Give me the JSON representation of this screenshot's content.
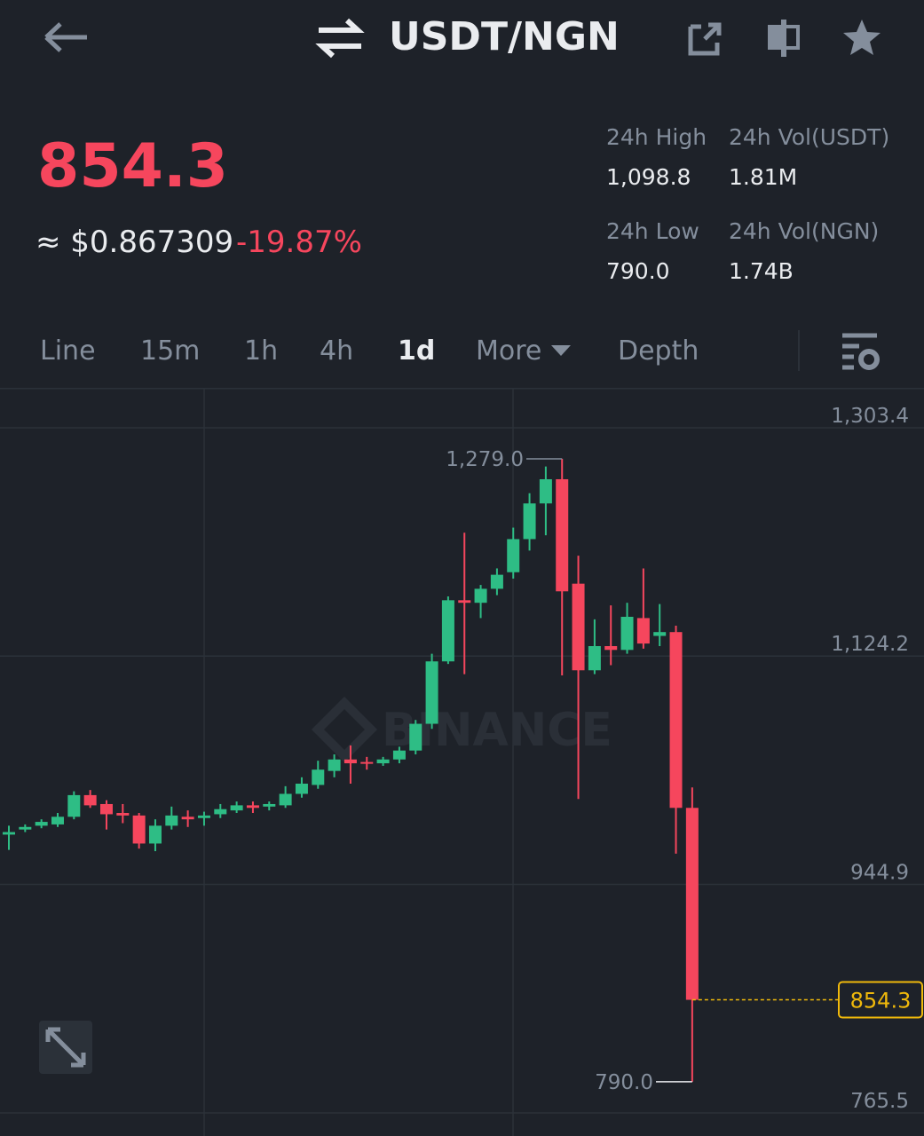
{
  "header": {
    "pair": "USDT/NGN"
  },
  "ticker": {
    "price": "854.3",
    "usd": "≈ $0.867309",
    "change": "-19.87%"
  },
  "stats": [
    {
      "label": "24h High",
      "value": "1,098.8"
    },
    {
      "label": "24h Vol(USDT)",
      "value": "1.81M"
    },
    {
      "label": "24h Low",
      "value": "790.0"
    },
    {
      "label": "24h Vol(NGN)",
      "value": "1.74B"
    }
  ],
  "tabs": [
    "Line",
    "15m",
    "1h",
    "4h",
    "1d",
    "More",
    "Depth"
  ],
  "active_tab": 4,
  "chart_data": {
    "type": "candlestick",
    "watermark": "BINANCE",
    "ylim": [
      765.5,
      1303.4
    ],
    "yticks": [
      {
        "value": 1303.4,
        "label": "1,303.4"
      },
      {
        "value": 1124.2,
        "label": "1,124.2"
      },
      944.9,
      765.5
    ],
    "grid": true,
    "up_color": "#2ebd85",
    "down_color": "#f6465d",
    "open": [
      984,
      988,
      991,
      992,
      998,
      1015,
      1008,
      1001,
      999,
      977,
      991,
      998,
      997,
      1000,
      1003,
      1007,
      1006,
      1007,
      1016,
      1023,
      1034,
      1043,
      1041,
      1040,
      1043,
      1050,
      1071,
      1120,
      1168,
      1166,
      1177,
      1190,
      1216,
      1244,
      1263,
      1181,
      1113,
      1132,
      1129,
      1154,
      1140,
      1143,
      1005
    ],
    "high": [
      991,
      992,
      996,
      1001,
      1018,
      1019,
      1011,
      1008,
      1001,
      996,
      1006,
      1003,
      1002,
      1008,
      1010,
      1010,
      1010,
      1022,
      1029,
      1042,
      1047,
      1054,
      1045,
      1045,
      1053,
      1074,
      1126,
      1171,
      1221,
      1180,
      1193,
      1225,
      1252,
      1273,
      1279,
      1203,
      1153,
      1164,
      1166,
      1193,
      1165,
      1148,
      1021
    ],
    "low": [
      972,
      986,
      989,
      990,
      996,
      1005,
      988,
      993,
      973,
      971,
      988,
      990,
      991,
      997,
      1001,
      1001,
      1003,
      1005,
      1013,
      1020,
      1029,
      1024,
      1035,
      1038,
      1040,
      1047,
      1067,
      1118,
      1110,
      1154,
      1172,
      1185,
      1207,
      1219,
      1109,
      1012,
      1110,
      1117,
      1126,
      1130,
      1132,
      969,
      790
    ],
    "close": [
      986,
      990,
      994,
      998,
      1015,
      1007,
      1000,
      999,
      977,
      991,
      999,
      996,
      999,
      1004,
      1007,
      1005,
      1008,
      1016,
      1024,
      1035,
      1043,
      1040,
      1040,
      1043,
      1050,
      1071,
      1120,
      1168,
      1166,
      1177,
      1188,
      1216,
      1244,
      1263,
      1175,
      1113,
      1132,
      1129,
      1155,
      1134,
      1143,
      1005,
      854.3
    ],
    "high_label": {
      "value": 1279.0,
      "label": "1,279.0"
    },
    "low_label": {
      "value": 790.0,
      "label": "790.0"
    },
    "last_price": {
      "value": 854.3,
      "label": "854.3"
    }
  }
}
